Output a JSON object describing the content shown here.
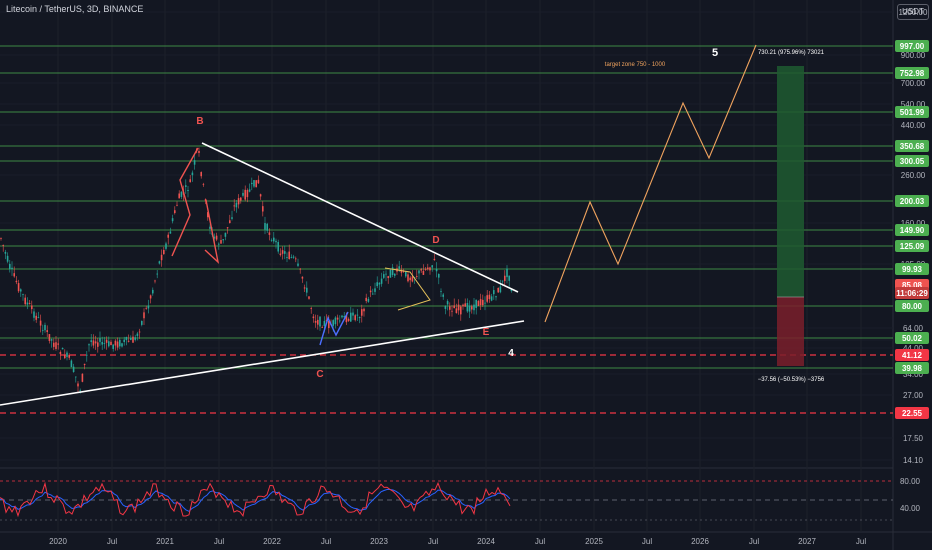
{
  "header": {
    "symbol_title": "Litecoin / TetherUS, 3D, BINANCE",
    "currency": "USDT"
  },
  "colors": {
    "background": "#131722",
    "up": "#26a69a",
    "down": "#ef5350",
    "level": "#4caf50",
    "dashed": "#f23645",
    "projection": "#f0a35e",
    "trendline": "#ffffff",
    "rsi": "#f23645",
    "rsi_ma": "#2962ff"
  },
  "price_axis": {
    "ticks": [
      "1200.00",
      "900.00",
      "700.00",
      "540.00",
      "440.00",
      "260.00",
      "160.00",
      "105.00",
      "64.00",
      "54.00",
      "44.00",
      "34.00",
      "27.00",
      "17.50",
      "14.10"
    ]
  },
  "level_labels": [
    {
      "text": "997.00",
      "type": "green"
    },
    {
      "text": "752.98",
      "type": "green"
    },
    {
      "text": "501.99",
      "type": "green"
    },
    {
      "text": "350.68",
      "type": "green"
    },
    {
      "text": "300.05",
      "type": "green"
    },
    {
      "text": "200.03",
      "type": "green"
    },
    {
      "text": "149.90",
      "type": "green"
    },
    {
      "text": "125.09",
      "type": "green"
    },
    {
      "text": "99.93",
      "type": "green"
    },
    {
      "text": "85.08",
      "type": "current"
    },
    {
      "text": "11:06:29",
      "type": "countdown"
    },
    {
      "text": "80.00",
      "type": "green"
    },
    {
      "text": "50.02",
      "type": "green"
    },
    {
      "text": "41.12",
      "type": "red"
    },
    {
      "text": "39.98",
      "type": "green"
    },
    {
      "text": "22.55",
      "type": "red"
    }
  ],
  "time_axis": {
    "labels": [
      "2020",
      "Jul",
      "2021",
      "Jul",
      "2022",
      "Jul",
      "2023",
      "Jul",
      "2024",
      "Jul",
      "2025",
      "Jul",
      "2026",
      "Jul",
      "2027",
      "Jul"
    ]
  },
  "rsi_axis": {
    "ticks": [
      "80.00",
      "40.00"
    ]
  },
  "annotations": {
    "wave_b": "B",
    "wave_c": "C",
    "wave_d": "D",
    "wave_e": "E",
    "wave_4": "4",
    "wave_5": "5",
    "target_zone": "target zone 750 - 1000",
    "long_gain": "730.21 (975.96%) 73021",
    "long_loss": "−37.56 (−50.53%) −3756"
  }
}
